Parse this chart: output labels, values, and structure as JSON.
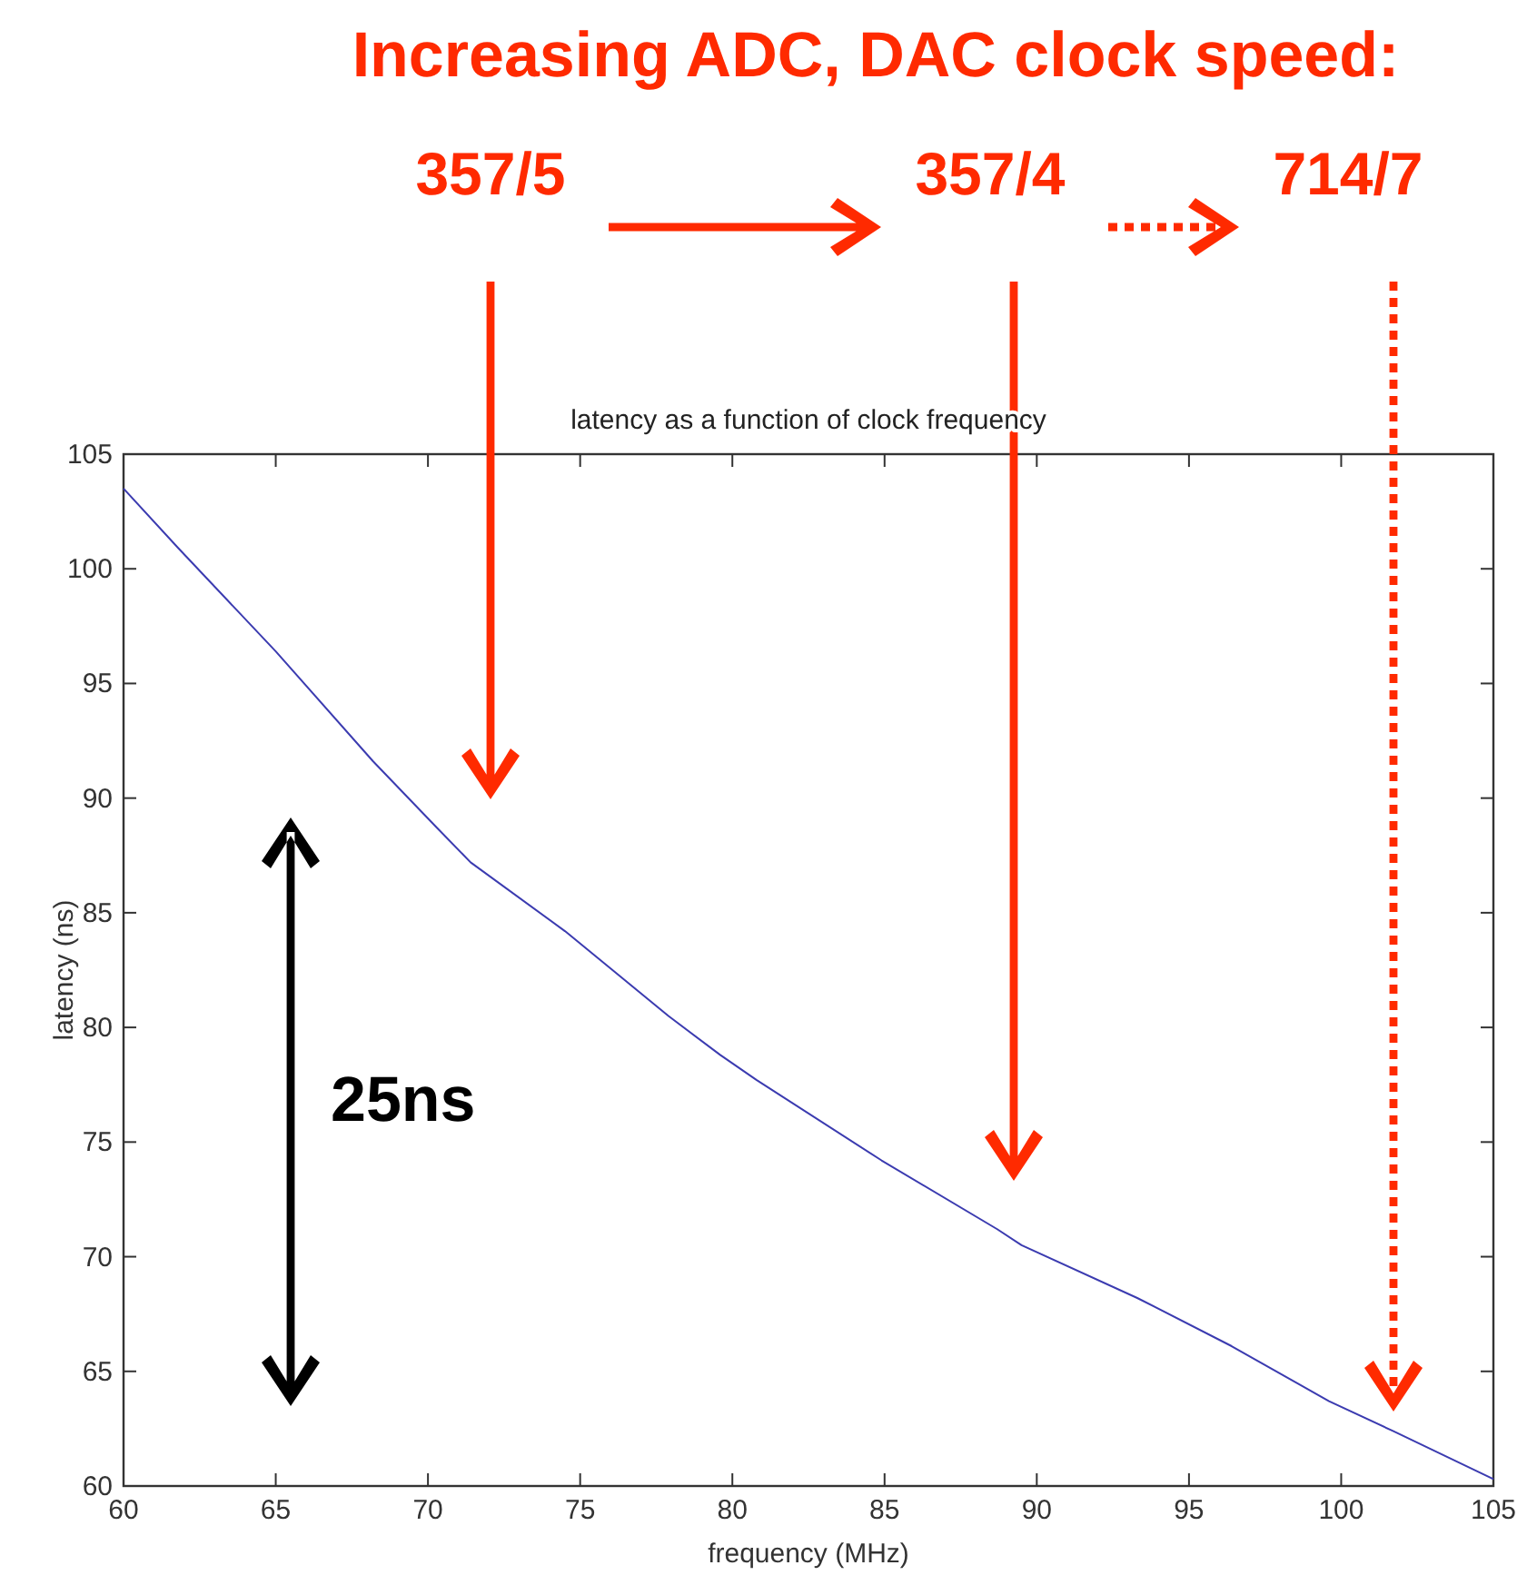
{
  "chart_data": {
    "type": "line",
    "title": "latency as a function of clock frequency",
    "xlabel": "frequency (MHz)",
    "ylabel": "latency (ns)",
    "xlim": [
      60,
      105
    ],
    "xticks": [
      60,
      65,
      70,
      75,
      80,
      85,
      90,
      95,
      100,
      105
    ],
    "ylim": [
      60,
      105
    ],
    "yticks": [
      60,
      65,
      70,
      75,
      80,
      85,
      90,
      95,
      100,
      105
    ],
    "x": [
      60,
      61.8,
      65,
      68.2,
      70.3,
      71.4,
      74.5,
      77.9,
      79.6,
      80.8,
      84.9,
      88.7,
      89.5,
      93.3,
      96.4,
      99.6,
      101.7,
      105
    ],
    "series": [
      {
        "color": "#3b3bb0",
        "values": [
          103.5,
          100.9,
          96.4,
          91.6,
          88.7,
          87.2,
          84.2,
          80.5,
          78.8,
          77.7,
          74.2,
          71.2,
          70.5,
          68.2,
          66.1,
          63.7,
          62.4,
          60.3
        ]
      }
    ],
    "grid": false,
    "marker": "none",
    "line_style": "solid",
    "annotations": [
      "Increasing ADC, DAC clock speed:",
      "357/5",
      "357/4",
      "714/7",
      "25ns"
    ]
  }
}
